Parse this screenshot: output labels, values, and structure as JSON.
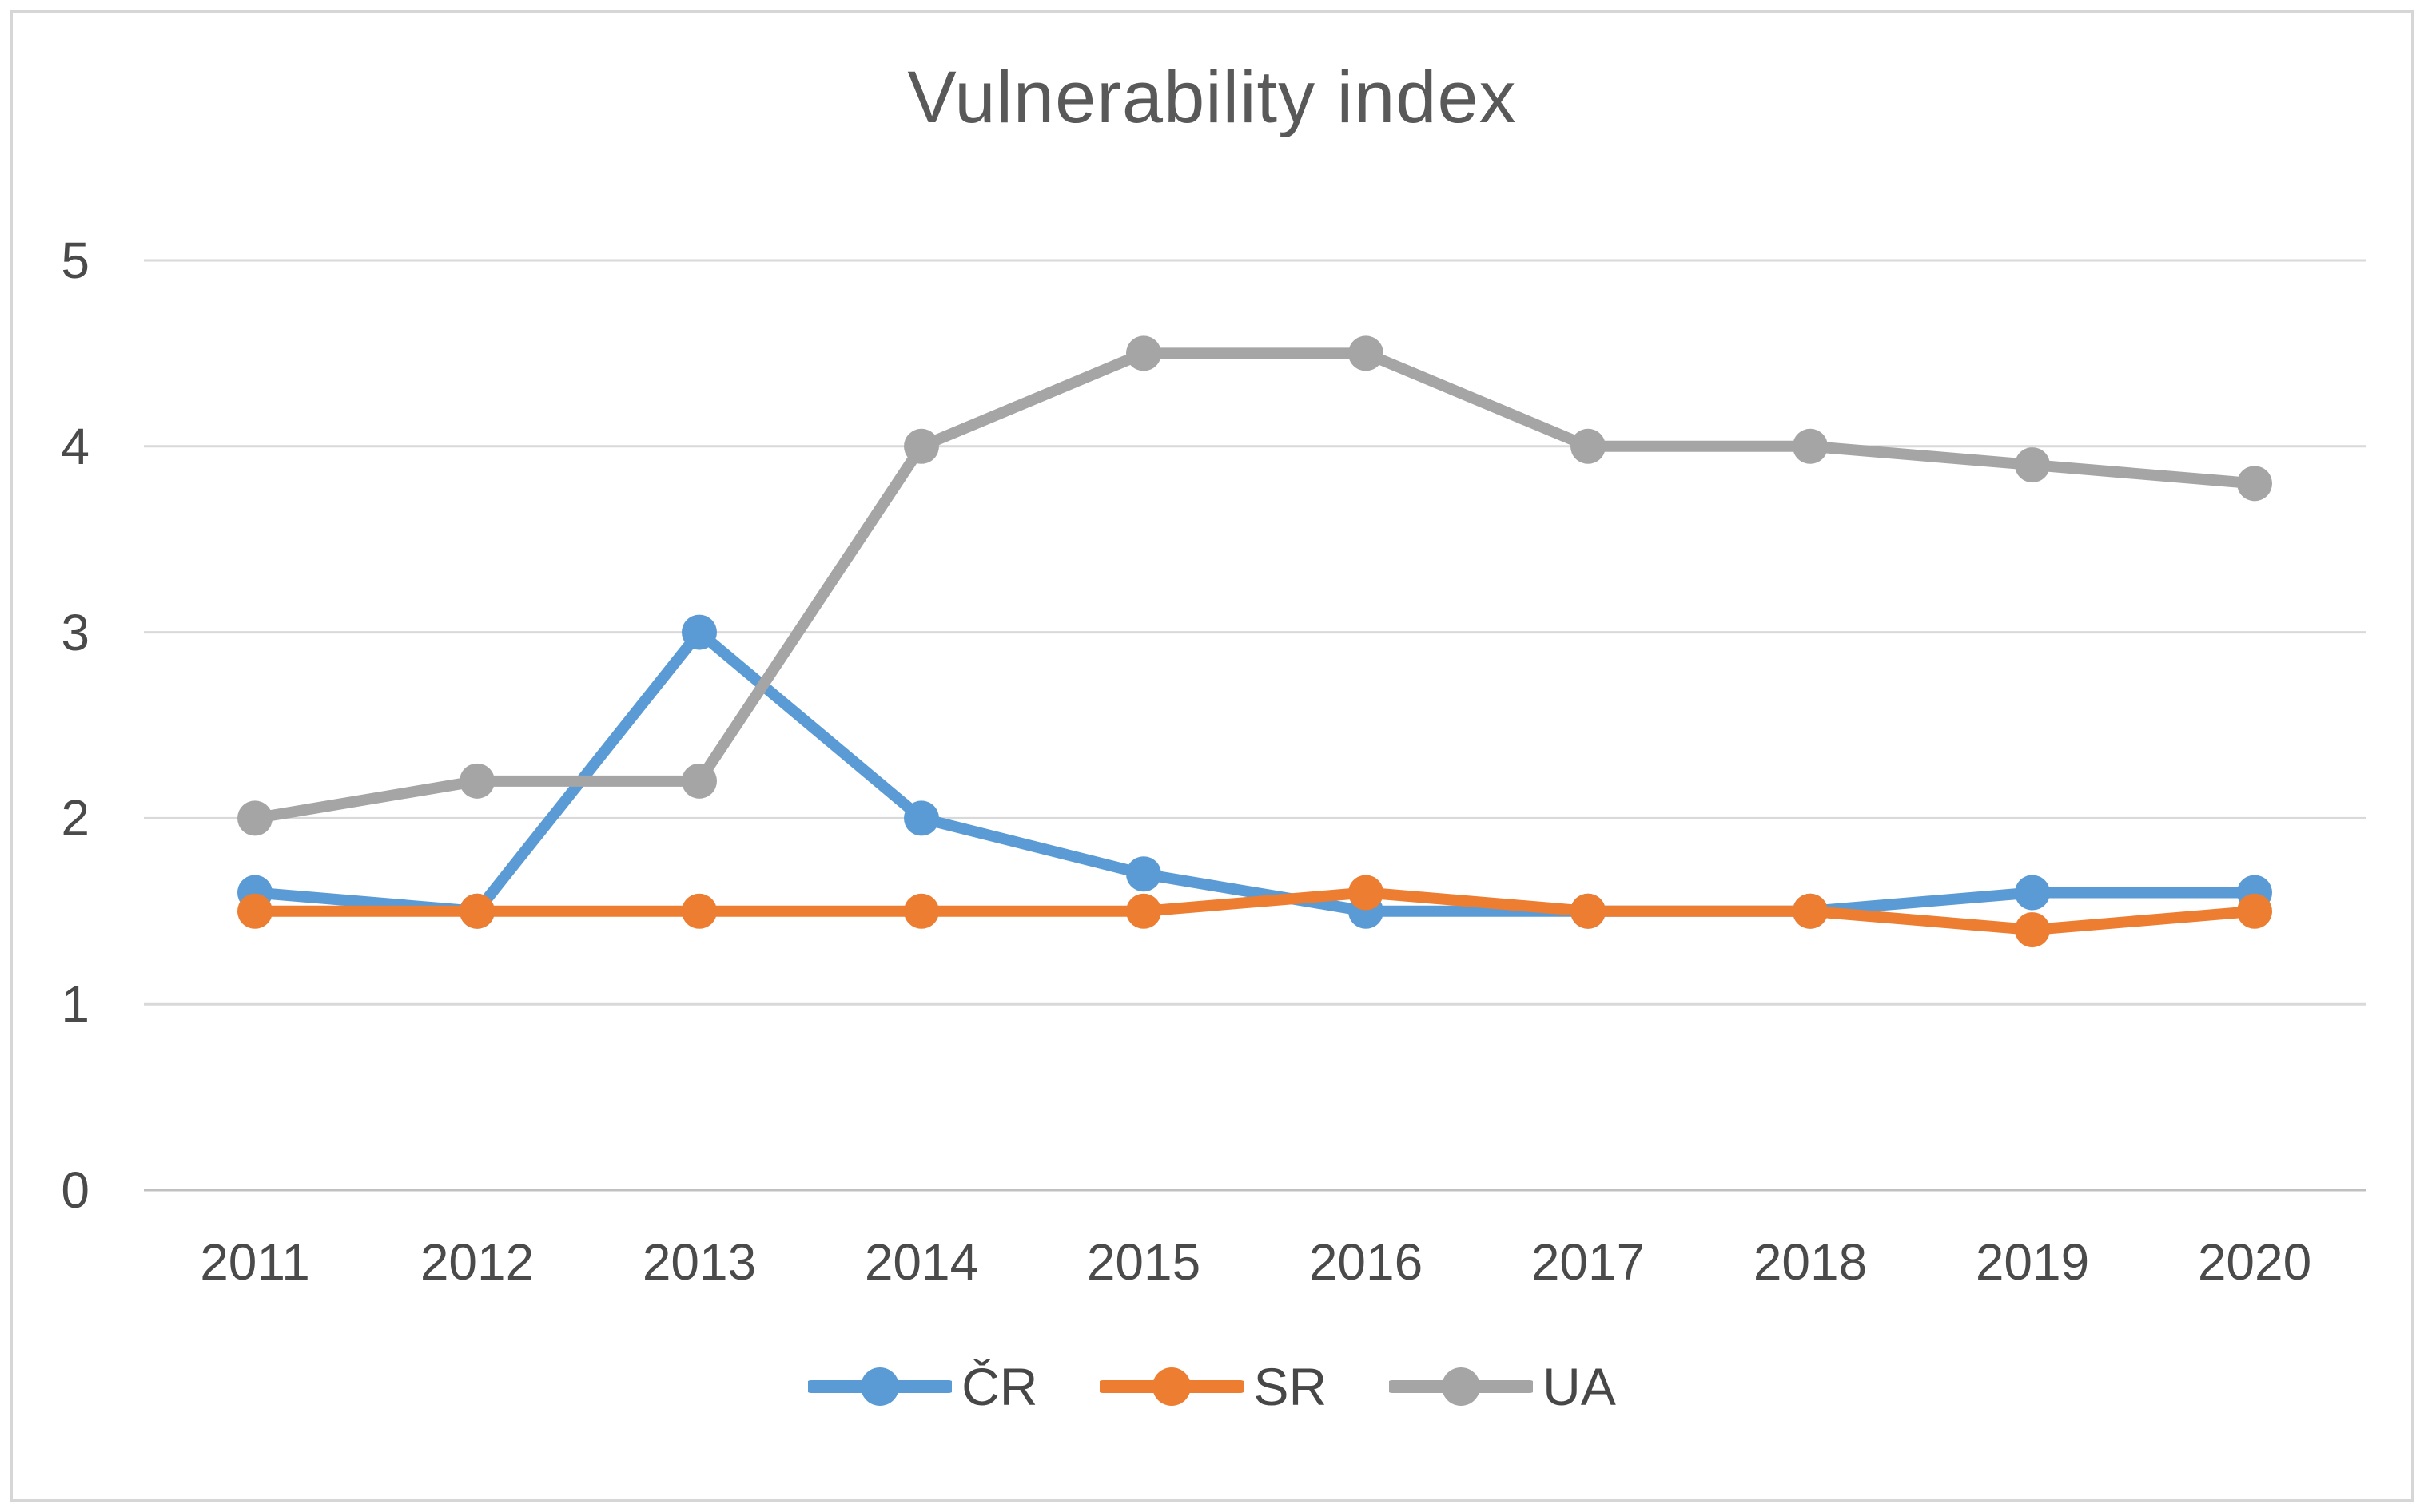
{
  "title": "Vulnerability index",
  "chart_data": {
    "type": "line",
    "title": "Vulnerability index",
    "xlabel": "",
    "ylabel": "",
    "categories": [
      "2011",
      "2012",
      "2013",
      "2014",
      "2015",
      "2016",
      "2017",
      "2018",
      "2019",
      "2020"
    ],
    "series": [
      {
        "name": "ČR",
        "color": "#5B9BD5",
        "values": [
          1.6,
          1.5,
          3,
          2,
          1.7,
          1.5,
          1.5,
          1.5,
          1.6,
          1.6
        ]
      },
      {
        "name": "SR",
        "color": "#ED7D31",
        "values": [
          1.5,
          1.5,
          1.5,
          1.5,
          1.5,
          1.6,
          1.5,
          1.5,
          1.4,
          1.5
        ]
      },
      {
        "name": "UA",
        "color": "#A5A5A5",
        "values": [
          2,
          2.2,
          2.2,
          4,
          4.5,
          4.5,
          4,
          4,
          3.9,
          3.8
        ]
      }
    ],
    "ylim": [
      0,
      5
    ],
    "yticks": [
      0,
      1,
      2,
      3,
      4,
      5
    ],
    "grid": true,
    "marker": "circle",
    "legend_position": "bottom"
  },
  "colors": {
    "gridline": "#D9D9D9",
    "axis_line": "#C0C0C0",
    "tick_text": "#4A4A4A",
    "title_text": "#595959",
    "frame_border": "#D6D6D6",
    "background": "#FFFFFF"
  }
}
